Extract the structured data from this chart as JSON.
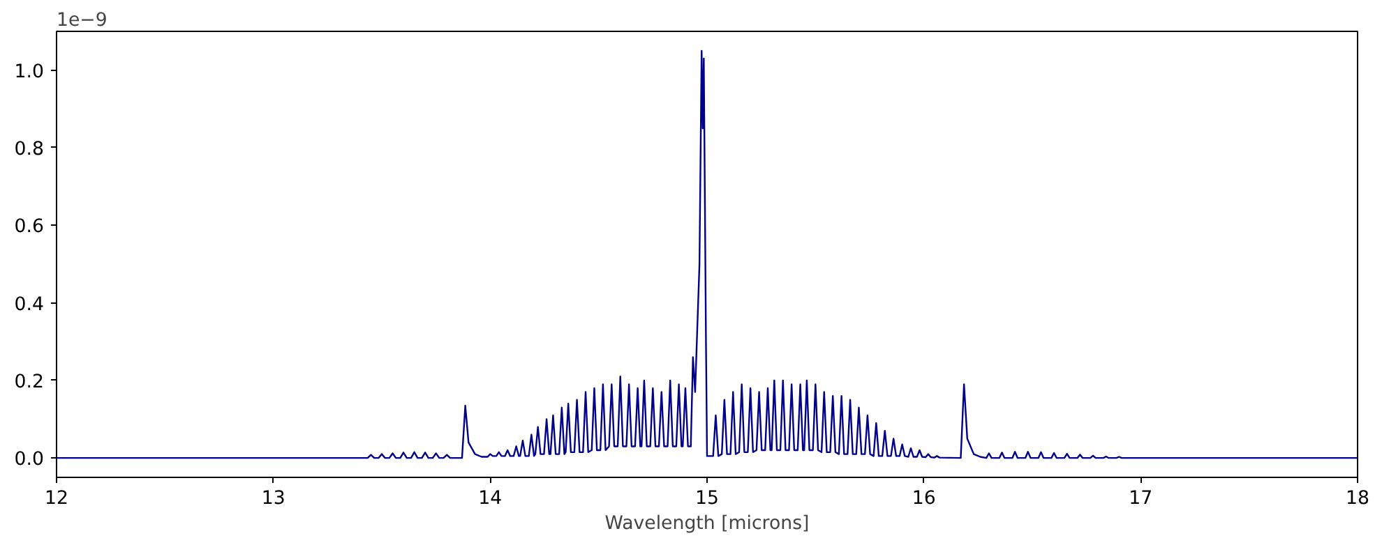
{
  "chart_data": {
    "type": "line",
    "xlabel": "Wavelength [microns]",
    "annotations": [
      "1e−9"
    ],
    "xlim": [
      12,
      18
    ],
    "ylim": [
      -0.05,
      1.1
    ],
    "xticks": [
      12,
      13,
      14,
      15,
      16,
      17,
      18
    ],
    "yticks": [
      {
        "value": 0,
        "label": "0.0"
      },
      0.2,
      0.4,
      0.6,
      0.8,
      {
        "value": 1,
        "label": "1.0"
      }
    ],
    "grid": false,
    "marker": "none",
    "line_style": "solid",
    "series": [
      {
        "color": "#00008b",
        "x": [
          12.0,
          13.3,
          13.435,
          13.45,
          13.465,
          13.485,
          13.5,
          13.515,
          13.535,
          13.55,
          13.565,
          13.585,
          13.6,
          13.615,
          13.635,
          13.65,
          13.665,
          13.685,
          13.7,
          13.715,
          13.735,
          13.75,
          13.765,
          13.785,
          13.8,
          13.815,
          13.87,
          13.885,
          13.9,
          13.93,
          13.96,
          13.988,
          14.0,
          14.012,
          14.028,
          14.04,
          14.052,
          14.068,
          14.08,
          14.092,
          14.108,
          14.12,
          14.132,
          14.138,
          14.15,
          14.162,
          14.178,
          14.19,
          14.202,
          14.208,
          14.22,
          14.232,
          14.248,
          14.26,
          14.272,
          14.278,
          14.29,
          14.302,
          14.318,
          14.33,
          14.342,
          14.348,
          14.36,
          14.372,
          14.388,
          14.4,
          14.412,
          14.428,
          14.44,
          14.452,
          14.468,
          14.48,
          14.492,
          14.508,
          14.52,
          14.532,
          14.548,
          14.56,
          14.572,
          14.588,
          14.6,
          14.612,
          14.628,
          14.64,
          14.652,
          14.668,
          14.68,
          14.692,
          14.698,
          14.71,
          14.722,
          14.738,
          14.75,
          14.762,
          14.778,
          14.79,
          14.802,
          14.818,
          14.83,
          14.842,
          14.858,
          14.87,
          14.882,
          14.888,
          14.9,
          14.912,
          14.925,
          14.935,
          14.945,
          14.965,
          14.975,
          14.98,
          14.985,
          14.995,
          15.0,
          15.028,
          15.04,
          15.052,
          15.068,
          15.08,
          15.092,
          15.108,
          15.12,
          15.132,
          15.148,
          15.16,
          15.172,
          15.188,
          15.2,
          15.212,
          15.228,
          15.24,
          15.252,
          15.268,
          15.28,
          15.292,
          15.298,
          15.31,
          15.322,
          15.338,
          15.35,
          15.362,
          15.378,
          15.39,
          15.402,
          15.418,
          15.43,
          15.442,
          15.448,
          15.46,
          15.472,
          15.488,
          15.5,
          15.512,
          15.528,
          15.54,
          15.552,
          15.568,
          15.58,
          15.592,
          15.608,
          15.62,
          15.632,
          15.648,
          15.66,
          15.672,
          15.688,
          15.7,
          15.712,
          15.728,
          15.74,
          15.752,
          15.768,
          15.78,
          15.792,
          15.808,
          15.82,
          15.832,
          15.848,
          15.86,
          15.872,
          15.888,
          15.9,
          15.912,
          15.928,
          15.94,
          15.952,
          15.968,
          15.98,
          15.992,
          16.008,
          16.02,
          16.032,
          16.048,
          16.06,
          16.072,
          16.17,
          16.185,
          16.2,
          16.23,
          16.26,
          16.288,
          16.3,
          16.312,
          16.348,
          16.36,
          16.372,
          16.408,
          16.42,
          16.432,
          16.468,
          16.48,
          16.492,
          16.528,
          16.54,
          16.552,
          16.588,
          16.6,
          16.612,
          16.648,
          16.66,
          16.672,
          16.708,
          16.72,
          16.732,
          16.768,
          16.78,
          16.792,
          16.828,
          16.84,
          16.852,
          16.888,
          16.9,
          16.912,
          17.0,
          18.0
        ],
        "values": [
          0,
          0,
          0,
          0.008,
          0,
          0,
          0.01,
          0,
          0,
          0.012,
          0,
          0,
          0.014,
          0,
          0,
          0.015,
          0,
          0,
          0.014,
          0,
          0,
          0.012,
          0,
          0,
          0.008,
          0,
          0,
          0.135,
          0.04,
          0.01,
          0.003,
          0.003,
          0.01,
          0.005,
          0.005,
          0.015,
          0.005,
          0.005,
          0.02,
          0.005,
          0.005,
          0.03,
          0.005,
          0.005,
          0.045,
          0.005,
          0.005,
          0.06,
          0.005,
          0.01,
          0.08,
          0.01,
          0.01,
          0.1,
          0.01,
          0.01,
          0.11,
          0.01,
          0.01,
          0.13,
          0.01,
          0.015,
          0.14,
          0.015,
          0.015,
          0.15,
          0.015,
          0.015,
          0.17,
          0.015,
          0.02,
          0.18,
          0.02,
          0.02,
          0.19,
          0.02,
          0.03,
          0.19,
          0.03,
          0.03,
          0.21,
          0.03,
          0.03,
          0.19,
          0.03,
          0.03,
          0.18,
          0.03,
          0.03,
          0.2,
          0.03,
          0.03,
          0.18,
          0.03,
          0.03,
          0.17,
          0.03,
          0.03,
          0.2,
          0.03,
          0.03,
          0.19,
          0.03,
          0.03,
          0.18,
          0.03,
          0.03,
          0.26,
          0.17,
          0.5,
          1.05,
          0.85,
          1.03,
          0.3,
          0.005,
          0.005,
          0.11,
          0.005,
          0.01,
          0.15,
          0.01,
          0.01,
          0.17,
          0.01,
          0.015,
          0.19,
          0.015,
          0.015,
          0.18,
          0.015,
          0.02,
          0.17,
          0.02,
          0.02,
          0.18,
          0.02,
          0.02,
          0.2,
          0.02,
          0.02,
          0.2,
          0.02,
          0.02,
          0.19,
          0.02,
          0.02,
          0.19,
          0.02,
          0.02,
          0.2,
          0.02,
          0.02,
          0.19,
          0.02,
          0.015,
          0.17,
          0.015,
          0.015,
          0.16,
          0.015,
          0.01,
          0.16,
          0.01,
          0.01,
          0.15,
          0.01,
          0.01,
          0.13,
          0.01,
          0.01,
          0.11,
          0.01,
          0.005,
          0.09,
          0.005,
          0.005,
          0.07,
          0.005,
          0.005,
          0.05,
          0.005,
          0.005,
          0.035,
          0.005,
          0.003,
          0.025,
          0.003,
          0.003,
          0.02,
          0.003,
          0.002,
          0.01,
          0.002,
          0.001,
          0.005,
          0.001,
          0,
          0.19,
          0.05,
          0.01,
          0.003,
          0,
          0.012,
          0,
          0,
          0.014,
          0,
          0,
          0.016,
          0,
          0,
          0.016,
          0,
          0,
          0.015,
          0,
          0,
          0.013,
          0,
          0,
          0.011,
          0,
          0,
          0.009,
          0,
          0,
          0.006,
          0,
          0,
          0.004,
          0,
          0,
          0.003,
          0,
          0,
          0
        ]
      }
    ]
  }
}
